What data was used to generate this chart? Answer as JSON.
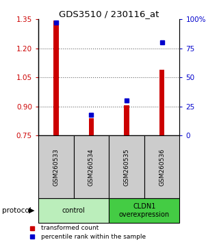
{
  "title": "GDS3510 / 230116_at",
  "samples": [
    "GSM260533",
    "GSM260534",
    "GSM260535",
    "GSM260536"
  ],
  "red_values": [
    1.345,
    0.838,
    0.905,
    1.09
  ],
  "blue_values": [
    97,
    18,
    30,
    80
  ],
  "ylim_left": [
    0.75,
    1.35
  ],
  "ylim_right": [
    0,
    100
  ],
  "yticks_left": [
    0.75,
    0.9,
    1.05,
    1.2,
    1.35
  ],
  "yticks_right": [
    0,
    25,
    50,
    75,
    100
  ],
  "ytick_labels_right": [
    "0",
    "25",
    "50",
    "75",
    "100%"
  ],
  "bar_color": "#cc0000",
  "dot_color": "#0000cc",
  "groups": [
    {
      "label": "control",
      "n": 2,
      "color": "#bbeebb"
    },
    {
      "label": "CLDN1\noverexpression",
      "n": 2,
      "color": "#44cc44"
    }
  ],
  "legend_red": "transformed count",
  "legend_blue": "percentile rank within the sample",
  "protocol_label": "protocol",
  "background_color": "#ffffff",
  "sample_box_color": "#cccccc",
  "grid_color": "#666666",
  "bar_width": 0.15
}
